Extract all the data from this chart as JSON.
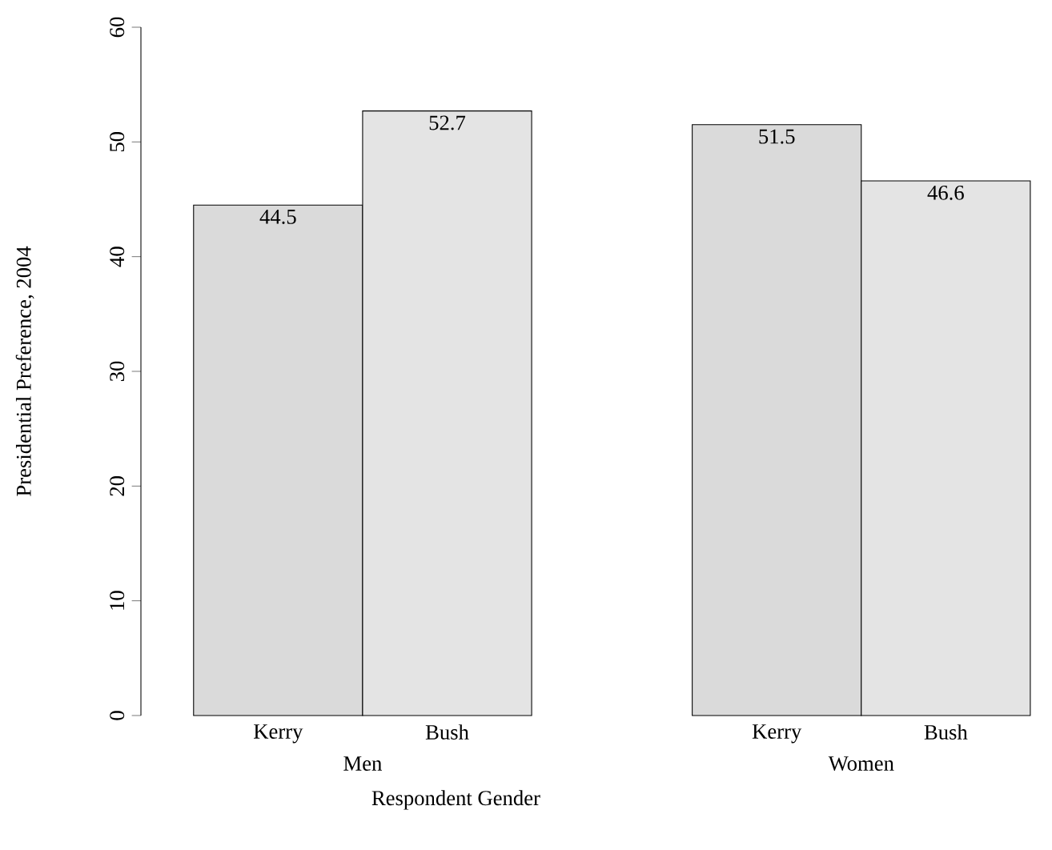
{
  "chart_data": {
    "type": "bar",
    "categories": [
      "Men",
      "Women"
    ],
    "series": [
      {
        "name": "Kerry",
        "color": "#dadada",
        "values": [
          44.5,
          51.5
        ]
      },
      {
        "name": "Bush",
        "color": "#e4e4e4",
        "values": [
          52.7,
          46.6
        ]
      }
    ],
    "xlabel": "Respondent Gender",
    "ylabel": "Presidential Preference, 2004",
    "ylim": [
      0,
      60
    ],
    "yticks": [
      0,
      10,
      20,
      30,
      40,
      50,
      60
    ],
    "data_labels": true
  }
}
